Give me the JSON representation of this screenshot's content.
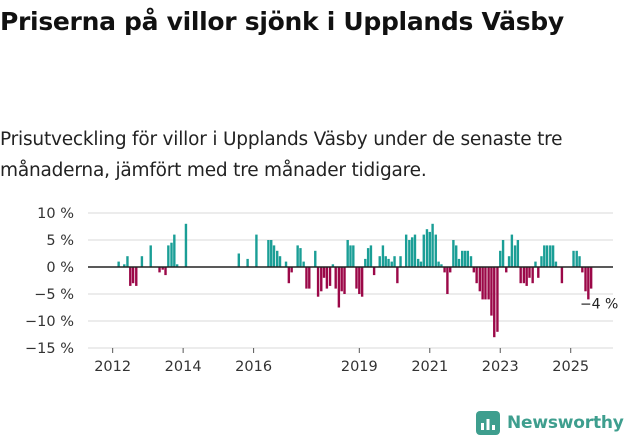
{
  "title": "Priserna på villor sjönk i Upplands Väsby",
  "subtitle": "Prisutveckling för villor i Upplands Väsby under de senaste tre månaderna, jämfört med tre månader tidigare.",
  "brand": {
    "name": "Newsworthy",
    "icon": "bar-chart-icon"
  },
  "colors": {
    "positive": "#1a9e96",
    "negative": "#9b0848",
    "zero_line": "#222222",
    "grid": "#d9d9d9",
    "brand": "#3e9e8e"
  },
  "chart_data": {
    "type": "bar",
    "ylim": [
      -15,
      10
    ],
    "xlim": [
      2011.5,
      2026.2
    ],
    "yticks": [
      {
        "value": 10,
        "label": "10 %"
      },
      {
        "value": 5,
        "label": "5 %"
      },
      {
        "value": 0,
        "label": "0 %"
      },
      {
        "value": -5,
        "label": "−5 %"
      },
      {
        "value": -10,
        "label": "−10 %"
      },
      {
        "value": -15,
        "label": "−15 %"
      }
    ],
    "xticks": [
      {
        "value": 2012,
        "label": "2012"
      },
      {
        "value": 2014,
        "label": "2014"
      },
      {
        "value": 2016,
        "label": "2016"
      },
      {
        "value": 2019,
        "label": "2019"
      },
      {
        "value": 2021,
        "label": "2021"
      },
      {
        "value": 2023,
        "label": "2023"
      },
      {
        "value": 2025,
        "label": "2025"
      }
    ],
    "annotation": {
      "text": "−4 %",
      "x": 2025.75,
      "y": -4
    },
    "series": [
      {
        "name": "Prisutveckling",
        "points": [
          {
            "x": 2012.17,
            "y": 1
          },
          {
            "x": 2012.33,
            "y": 0.5
          },
          {
            "x": 2012.42,
            "y": 2
          },
          {
            "x": 2012.5,
            "y": -3.5
          },
          {
            "x": 2012.58,
            "y": -3
          },
          {
            "x": 2012.67,
            "y": -3.5
          },
          {
            "x": 2012.83,
            "y": 2
          },
          {
            "x": 2013.08,
            "y": 4
          },
          {
            "x": 2013.33,
            "y": -1
          },
          {
            "x": 2013.42,
            "y": -0.5
          },
          {
            "x": 2013.5,
            "y": -1.5
          },
          {
            "x": 2013.58,
            "y": 4
          },
          {
            "x": 2013.67,
            "y": 4.5
          },
          {
            "x": 2013.75,
            "y": 6
          },
          {
            "x": 2013.83,
            "y": 0.5
          },
          {
            "x": 2014.08,
            "y": 8
          },
          {
            "x": 2015.58,
            "y": 2.5
          },
          {
            "x": 2015.83,
            "y": 1.5
          },
          {
            "x": 2016.08,
            "y": 6
          },
          {
            "x": 2016.42,
            "y": 5
          },
          {
            "x": 2016.5,
            "y": 5
          },
          {
            "x": 2016.58,
            "y": 4
          },
          {
            "x": 2016.67,
            "y": 3
          },
          {
            "x": 2016.75,
            "y": 2
          },
          {
            "x": 2016.92,
            "y": 1
          },
          {
            "x": 2017.0,
            "y": -3
          },
          {
            "x": 2017.08,
            "y": -1
          },
          {
            "x": 2017.25,
            "y": 4
          },
          {
            "x": 2017.33,
            "y": 3.5
          },
          {
            "x": 2017.42,
            "y": 1
          },
          {
            "x": 2017.5,
            "y": -4
          },
          {
            "x": 2017.58,
            "y": -4
          },
          {
            "x": 2017.75,
            "y": 3
          },
          {
            "x": 2017.83,
            "y": -5.5
          },
          {
            "x": 2017.92,
            "y": -4.5
          },
          {
            "x": 2018.0,
            "y": -2
          },
          {
            "x": 2018.08,
            "y": -4
          },
          {
            "x": 2018.17,
            "y": -3.5
          },
          {
            "x": 2018.25,
            "y": 0.5
          },
          {
            "x": 2018.33,
            "y": -4
          },
          {
            "x": 2018.42,
            "y": -7.5
          },
          {
            "x": 2018.5,
            "y": -4.5
          },
          {
            "x": 2018.58,
            "y": -5
          },
          {
            "x": 2018.67,
            "y": 5
          },
          {
            "x": 2018.75,
            "y": 4
          },
          {
            "x": 2018.83,
            "y": 4
          },
          {
            "x": 2018.92,
            "y": -4
          },
          {
            "x": 2019.0,
            "y": -5
          },
          {
            "x": 2019.08,
            "y": -5.5
          },
          {
            "x": 2019.17,
            "y": 1.5
          },
          {
            "x": 2019.25,
            "y": 3.5
          },
          {
            "x": 2019.33,
            "y": 4
          },
          {
            "x": 2019.42,
            "y": -1.5
          },
          {
            "x": 2019.58,
            "y": 2
          },
          {
            "x": 2019.67,
            "y": 4
          },
          {
            "x": 2019.75,
            "y": 2
          },
          {
            "x": 2019.83,
            "y": 1.5
          },
          {
            "x": 2019.92,
            "y": 1
          },
          {
            "x": 2020.0,
            "y": 2
          },
          {
            "x": 2020.08,
            "y": -3
          },
          {
            "x": 2020.17,
            "y": 2
          },
          {
            "x": 2020.33,
            "y": 6
          },
          {
            "x": 2020.42,
            "y": 5
          },
          {
            "x": 2020.5,
            "y": 5.5
          },
          {
            "x": 2020.58,
            "y": 6
          },
          {
            "x": 2020.67,
            "y": 1.5
          },
          {
            "x": 2020.75,
            "y": 1
          },
          {
            "x": 2020.83,
            "y": 6
          },
          {
            "x": 2020.92,
            "y": 7
          },
          {
            "x": 2021.0,
            "y": 6.5
          },
          {
            "x": 2021.08,
            "y": 8
          },
          {
            "x": 2021.17,
            "y": 6
          },
          {
            "x": 2021.25,
            "y": 1
          },
          {
            "x": 2021.33,
            "y": 0.5
          },
          {
            "x": 2021.42,
            "y": -1
          },
          {
            "x": 2021.5,
            "y": -5
          },
          {
            "x": 2021.58,
            "y": -1
          },
          {
            "x": 2021.67,
            "y": 5
          },
          {
            "x": 2021.75,
            "y": 4
          },
          {
            "x": 2021.83,
            "y": 1.5
          },
          {
            "x": 2021.92,
            "y": 3
          },
          {
            "x": 2022.0,
            "y": 3
          },
          {
            "x": 2022.08,
            "y": 3
          },
          {
            "x": 2022.17,
            "y": 2
          },
          {
            "x": 2022.25,
            "y": -1
          },
          {
            "x": 2022.33,
            "y": -3
          },
          {
            "x": 2022.42,
            "y": -4.5
          },
          {
            "x": 2022.5,
            "y": -6
          },
          {
            "x": 2022.58,
            "y": -6
          },
          {
            "x": 2022.67,
            "y": -6
          },
          {
            "x": 2022.75,
            "y": -9
          },
          {
            "x": 2022.83,
            "y": -13
          },
          {
            "x": 2022.92,
            "y": -12
          },
          {
            "x": 2023.0,
            "y": 3
          },
          {
            "x": 2023.08,
            "y": 5
          },
          {
            "x": 2023.17,
            "y": -1
          },
          {
            "x": 2023.25,
            "y": 2
          },
          {
            "x": 2023.33,
            "y": 6
          },
          {
            "x": 2023.42,
            "y": 4
          },
          {
            "x": 2023.5,
            "y": 5
          },
          {
            "x": 2023.58,
            "y": -3
          },
          {
            "x": 2023.67,
            "y": -3
          },
          {
            "x": 2023.75,
            "y": -3.5
          },
          {
            "x": 2023.83,
            "y": -2
          },
          {
            "x": 2023.92,
            "y": -3
          },
          {
            "x": 2024.0,
            "y": 1
          },
          {
            "x": 2024.08,
            "y": -2
          },
          {
            "x": 2024.17,
            "y": 2
          },
          {
            "x": 2024.25,
            "y": 4
          },
          {
            "x": 2024.33,
            "y": 4
          },
          {
            "x": 2024.42,
            "y": 4
          },
          {
            "x": 2024.5,
            "y": 4
          },
          {
            "x": 2024.58,
            "y": 1
          },
          {
            "x": 2024.75,
            "y": -3
          },
          {
            "x": 2025.08,
            "y": 3
          },
          {
            "x": 2025.17,
            "y": 3
          },
          {
            "x": 2025.25,
            "y": 2
          },
          {
            "x": 2025.33,
            "y": -1
          },
          {
            "x": 2025.42,
            "y": -4.5
          },
          {
            "x": 2025.5,
            "y": -6
          },
          {
            "x": 2025.58,
            "y": -4
          }
        ]
      }
    ]
  }
}
